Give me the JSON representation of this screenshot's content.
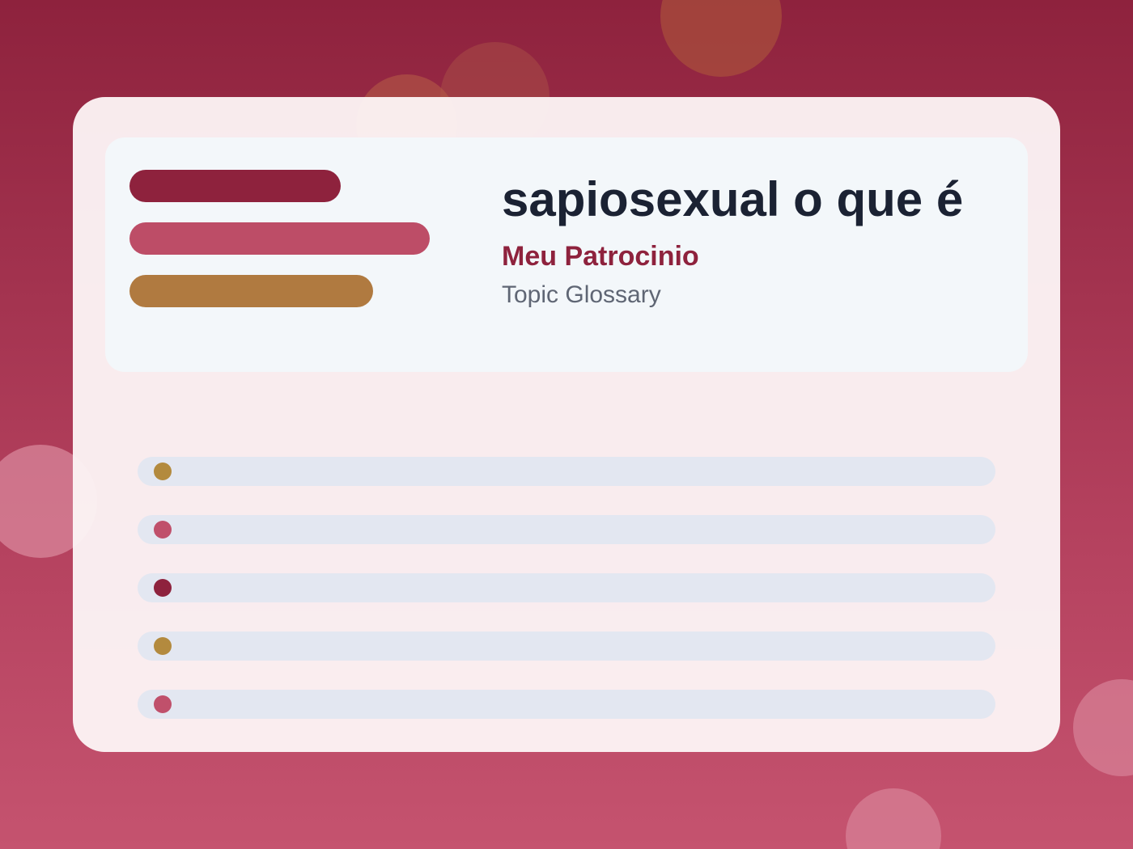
{
  "header": {
    "title": "sapiosexual o que é",
    "subtitle": "Meu Patrocinio",
    "caption": "Topic Glossary"
  }
}
